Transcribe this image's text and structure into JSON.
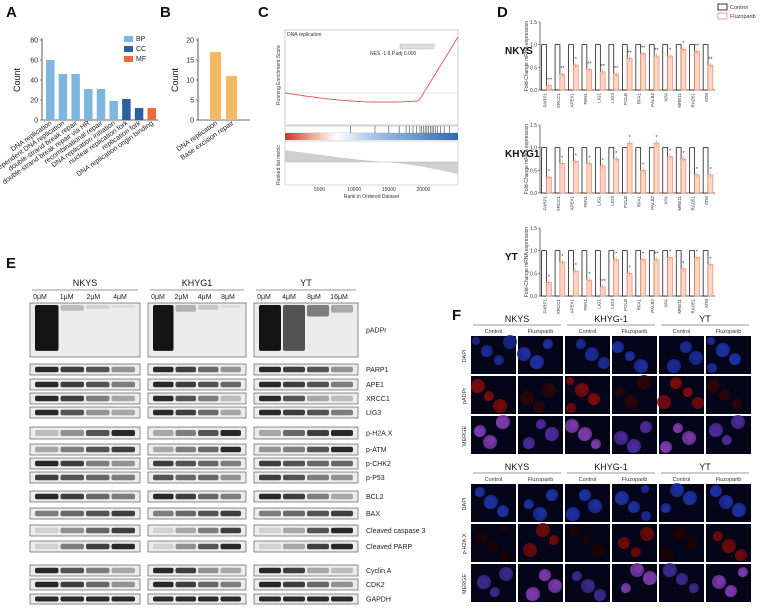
{
  "panels": {
    "A": "A",
    "B": "B",
    "C": "C",
    "D": "D",
    "E": "E",
    "F": "F"
  },
  "panel_a": {
    "ylabel": "Count",
    "legend": [
      {
        "name": "BP",
        "color": "#7fb6df"
      },
      {
        "name": "CC",
        "color": "#2e5f9e"
      },
      {
        "name": "MF",
        "color": "#ef6a3a"
      }
    ],
    "yticks": [
      "0",
      "20",
      "40",
      "60",
      "80"
    ],
    "categories": [
      "DNA replication",
      "DNA-dependent DNA replication",
      "double-strand break repair",
      "double-strand break repair via HR",
      "recombinational repair",
      "DNA replication initiation",
      "nuclear replication fork",
      "replication fork",
      "DNA replication origin binding"
    ],
    "values": [
      60,
      46,
      46,
      31,
      31,
      19,
      21,
      12,
      12
    ],
    "groups": [
      "BP",
      "BP",
      "BP",
      "BP",
      "BP",
      "BP",
      "CC",
      "CC",
      "MF"
    ]
  },
  "panel_b": {
    "ylabel": "Count",
    "yticks": [
      "0",
      "5",
      "10",
      "15",
      "20"
    ],
    "categories": [
      "DNA replication",
      "Base excision repair"
    ],
    "values": [
      17,
      11
    ],
    "color": "#f5b865"
  },
  "panel_c": {
    "title": "DNA replication",
    "ylabel_top": "Running Enrichment Score",
    "ylabel_bottom": "Ranked list metric",
    "xlabel": "Rank in Ordered Dataset",
    "annotation": "NES -1.8  P.adj 0.000",
    "xticks": [
      "5000",
      "10000",
      "15000",
      "20000"
    ]
  },
  "panel_d": {
    "legend": [
      {
        "name": "Control",
        "color": "#000000"
      },
      {
        "name": "Fluzoparib",
        "color": "#ef8a6a"
      }
    ],
    "ylabel": "Fold-Change mRNA expression",
    "yticks": [
      "0.0",
      "0.5",
      "1.0",
      "1.5"
    ],
    "genes": [
      "PARP1",
      "XRCC1",
      "APEX1",
      "FEN1",
      "LIG1",
      "LIG3",
      "POLB",
      "RFA1",
      "PALB2",
      "XPA",
      "MRE11",
      "RAD51",
      "ATM"
    ],
    "charts": [
      {
        "cell": "NKYS",
        "values": [
          0.1,
          0.35,
          0.55,
          0.45,
          0.4,
          0.35,
          0.7,
          0.8,
          0.75,
          0.75,
          0.9,
          0.85,
          0.55
        ],
        "marks": [
          "***",
          "**",
          "*",
          "**",
          "**",
          "**",
          "**",
          "**",
          "**",
          "*",
          "*",
          "**",
          "**"
        ]
      },
      {
        "cell": "KHYG1",
        "values": [
          0.35,
          0.65,
          0.7,
          0.65,
          0.6,
          0.75,
          1.1,
          0.5,
          1.1,
          0.8,
          0.75,
          0.4,
          0.4
        ],
        "marks": [
          "*",
          "*",
          "*",
          "*",
          "*",
          "*",
          "*",
          "*",
          "*",
          "*",
          "*",
          "*",
          "*"
        ]
      },
      {
        "cell": "YT",
        "values": [
          0.3,
          0.75,
          0.55,
          0.35,
          0.2,
          0.8,
          0.5,
          0.8,
          0.8,
          0.85,
          0.6,
          0.85,
          0.7
        ],
        "marks": [
          "*",
          "*",
          "*",
          "*",
          "***",
          "*",
          "*",
          "*",
          "**",
          "*",
          "*",
          "*",
          "*"
        ]
      }
    ]
  },
  "panel_e": {
    "cells": [
      {
        "name": "NKYS",
        "doses": [
          "0μM",
          "1μM",
          "2μM",
          "4μM"
        ]
      },
      {
        "name": "KHYG1",
        "doses": [
          "0μM",
          "2μM",
          "4μM",
          "8μM"
        ]
      },
      {
        "name": "YT",
        "doses": [
          "0μM",
          "4μM",
          "8μM",
          "16μM"
        ]
      }
    ],
    "proteins": [
      "pADPr",
      "PARP1",
      "APE1",
      "XRCC1",
      "LIG3",
      "p-H2A.X",
      "p-ATM",
      "p-CHK2",
      "p-P53",
      "BCL2",
      "BAX",
      "Cleaved caspase 3",
      "Cleaved PARP",
      "Cyclin A",
      "CDK2",
      "GAPDH"
    ]
  },
  "panel_f": {
    "blocks": [
      {
        "cells": [
          "NKYS",
          "KHYG-1",
          "YT"
        ],
        "conditions": [
          "Control",
          "Fluzoparib"
        ],
        "rows": [
          "DAPI",
          "pADPr",
          "MERGE"
        ]
      },
      {
        "cells": [
          "NKYS",
          "KHYG-1",
          "YT"
        ],
        "conditions": [
          "Control",
          "Fluzoparib"
        ],
        "rows": [
          "DAPI",
          "p-H2A.X",
          "MERGE"
        ]
      }
    ]
  }
}
